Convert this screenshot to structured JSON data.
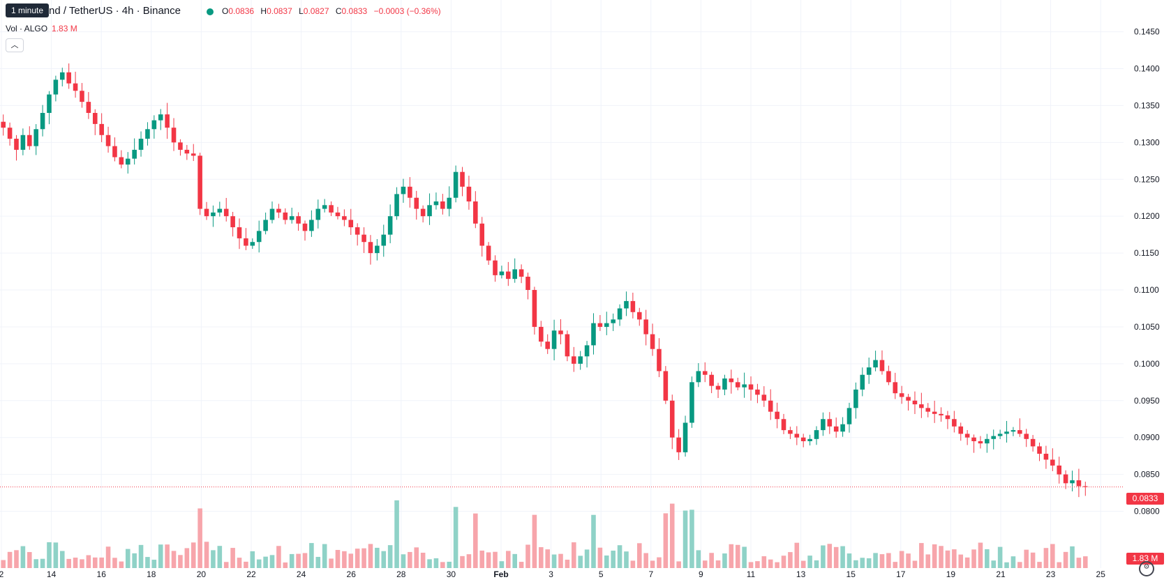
{
  "tooltip": "1 minute",
  "header": {
    "title": "nd / TetherUS · 4h · Binance",
    "ohlc": {
      "o_label": "O",
      "o": "0.0836",
      "h_label": "H",
      "h": "0.0837",
      "l_label": "L",
      "l": "0.0827",
      "c_label": "C",
      "c": "0.0833",
      "change": "−0.0003 (−0.36%)"
    }
  },
  "volume": {
    "label": "Vol · ALGO",
    "value": "1.83 M"
  },
  "collapse_icon": "chevron-up",
  "price_axis_label": "0.0833",
  "volume_axis_label": "1.83 M",
  "colors": {
    "up": "#089981",
    "down": "#f23645",
    "up_vol": "#8fd2c7",
    "down_vol": "#f7a5ab",
    "grid": "#f0f3fa"
  },
  "chart_data": {
    "type": "candlestick",
    "price_axis_ticks": [
      "0.1450",
      "0.1400",
      "0.1350",
      "0.1300",
      "0.1250",
      "0.1200",
      "0.1150",
      "0.1100",
      "0.1050",
      "0.1000",
      "0.0950",
      "0.0900",
      "0.0850",
      "0.0800"
    ],
    "time_axis_ticks": [
      "2",
      "14",
      "16",
      "18",
      "20",
      "22",
      "24",
      "26",
      "28",
      "30",
      "Feb",
      "3",
      "5",
      "7",
      "9",
      "11",
      "13",
      "15",
      "17",
      "19",
      "21",
      "23",
      "25"
    ],
    "y_range": [
      0.0775,
      0.146
    ],
    "last_price": 0.0833,
    "close_series": [
      0.132,
      0.1305,
      0.129,
      0.131,
      0.1295,
      0.1318,
      0.134,
      0.1365,
      0.1385,
      0.1395,
      0.138,
      0.137,
      0.1355,
      0.134,
      0.1325,
      0.131,
      0.1295,
      0.128,
      0.127,
      0.1278,
      0.129,
      0.1305,
      0.1318,
      0.133,
      0.1338,
      0.132,
      0.13,
      0.129,
      0.1285,
      0.1282,
      0.121,
      0.12,
      0.1205,
      0.121,
      0.12,
      0.1185,
      0.117,
      0.116,
      0.1165,
      0.118,
      0.1195,
      0.121,
      0.1205,
      0.1195,
      0.12,
      0.119,
      0.118,
      0.1195,
      0.121,
      0.1215,
      0.1205,
      0.12,
      0.1195,
      0.1185,
      0.1175,
      0.1165,
      0.115,
      0.116,
      0.1175,
      0.12,
      0.123,
      0.124,
      0.1225,
      0.121,
      0.12,
      0.1215,
      0.122,
      0.121,
      0.1225,
      0.126,
      0.124,
      0.122,
      0.119,
      0.116,
      0.114,
      0.112,
      0.1125,
      0.1115,
      0.1128,
      0.1118,
      0.11,
      0.105,
      0.103,
      0.102,
      0.1045,
      0.104,
      0.101,
      0.1,
      0.101,
      0.1025,
      0.1055,
      0.105,
      0.1055,
      0.106,
      0.1075,
      0.1085,
      0.107,
      0.106,
      0.104,
      0.102,
      0.099,
      0.095,
      0.09,
      0.088,
      0.092,
      0.0975,
      0.099,
      0.0985,
      0.097,
      0.0965,
      0.098,
      0.0975,
      0.0968,
      0.0972,
      0.0965,
      0.0958,
      0.095,
      0.0935,
      0.0925,
      0.091,
      0.0905,
      0.09,
      0.0895,
      0.0898,
      0.091,
      0.0925,
      0.0915,
      0.0908,
      0.0918,
      0.094,
      0.0965,
      0.0985,
      0.0995,
      0.1005,
      0.099,
      0.0975,
      0.096,
      0.0955,
      0.095,
      0.0945,
      0.094,
      0.0935,
      0.0932,
      0.093,
      0.0925,
      0.0915,
      0.0905,
      0.09,
      0.0895,
      0.0892,
      0.0898,
      0.0902,
      0.0905,
      0.0908,
      0.091,
      0.0905,
      0.0898,
      0.0888,
      0.0878,
      0.087,
      0.0862,
      0.085,
      0.0838,
      0.0842,
      0.0834,
      0.0833
    ]
  }
}
